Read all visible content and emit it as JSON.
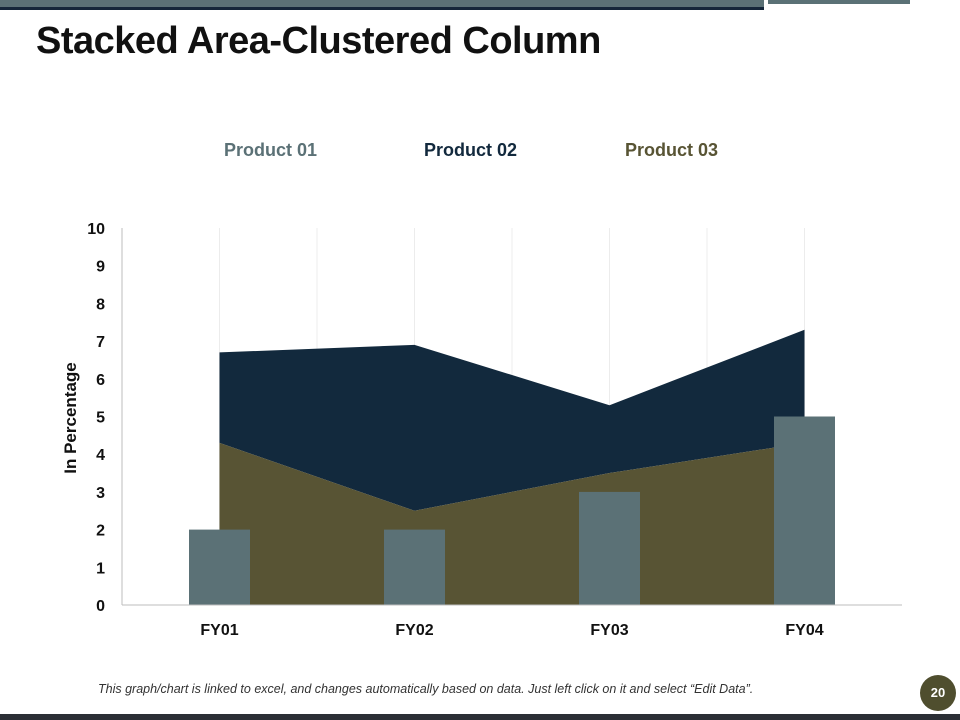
{
  "slide": {
    "title": "Stacked Area-Clustered Column",
    "footer_note": "This graph/chart is linked to excel, and changes automatically based on data. Just left click on it and select “Edit Data”.",
    "page_number": "20"
  },
  "colors": {
    "product_01": "#5b7176",
    "product_02": "#12293d",
    "product_03": "#585434",
    "bar_accent": "#5b7176",
    "badge": "#4f4e2e"
  },
  "chart_data": {
    "type": "bar",
    "subtype": "stacked-area + clustered-column",
    "title": "",
    "xlabel": "",
    "ylabel": "In Percentage",
    "categories": [
      "FY01",
      "FY02",
      "FY03",
      "FY04"
    ],
    "ylim": [
      0,
      10
    ],
    "yticks": [
      "0",
      "1",
      "2",
      "3",
      "4",
      "5",
      "6",
      "7",
      "8",
      "9",
      "10"
    ],
    "legend": [
      "Product 01",
      "Product 02",
      "Product 03"
    ],
    "legend_position": "top",
    "series": [
      {
        "name": "Product 01",
        "kind": "column",
        "values": [
          2,
          2,
          3,
          5
        ]
      },
      {
        "name": "Product 02",
        "kind": "stacked-area",
        "values": [
          2.4,
          4.4,
          1.8,
          3.0
        ]
      },
      {
        "name": "Product 03",
        "kind": "stacked-area",
        "values": [
          4.3,
          2.5,
          3.5,
          4.3
        ]
      }
    ]
  }
}
